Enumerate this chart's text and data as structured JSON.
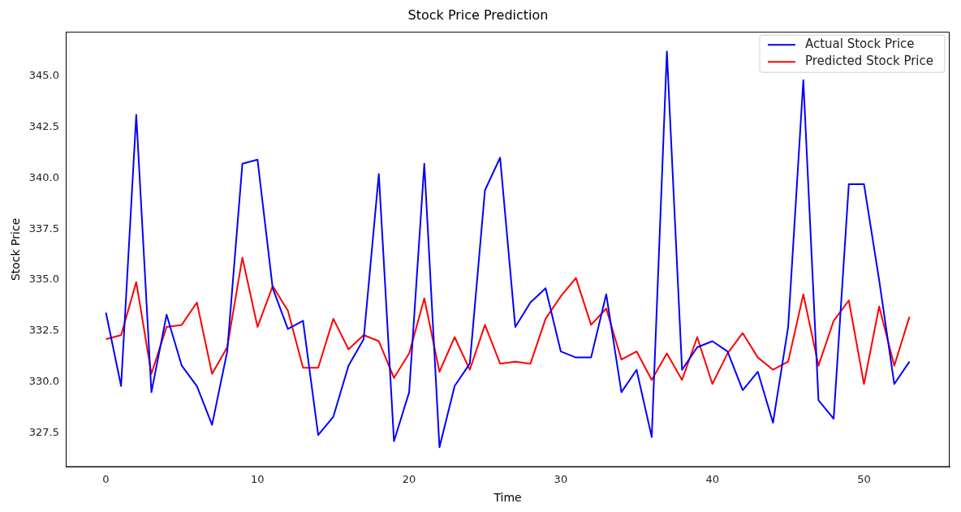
{
  "chart_data": {
    "type": "line",
    "title": "Stock Price Prediction",
    "xlabel": "Time",
    "ylabel": "Stock Price",
    "x": [
      0,
      1,
      2,
      3,
      4,
      5,
      6,
      7,
      8,
      9,
      10,
      11,
      12,
      13,
      14,
      15,
      16,
      17,
      18,
      19,
      20,
      21,
      22,
      23,
      24,
      25,
      26,
      27,
      28,
      29,
      30,
      31,
      32,
      33,
      34,
      35,
      36,
      37,
      38,
      39,
      40,
      41,
      42,
      43,
      44,
      45,
      46,
      47,
      48,
      49,
      50,
      51,
      52,
      53
    ],
    "series": [
      {
        "name": "Actual Stock Price",
        "color": "#0000ff",
        "values": [
          333.4,
          329.8,
          343.1,
          329.5,
          333.3,
          330.8,
          329.8,
          327.9,
          331.5,
          340.7,
          340.9,
          334.6,
          332.6,
          333.0,
          327.4,
          328.3,
          330.8,
          332.1,
          340.2,
          327.1,
          329.5,
          340.7,
          326.8,
          329.8,
          330.9,
          339.4,
          341.0,
          332.7,
          333.9,
          334.6,
          331.5,
          331.2,
          331.2,
          334.3,
          329.5,
          330.6,
          327.3,
          346.2,
          330.6,
          331.7,
          332.0,
          331.5,
          329.6,
          330.5,
          328.0,
          332.7,
          344.8,
          329.1,
          328.2,
          339.7,
          339.7,
          335.0,
          329.9,
          331.0
        ]
      },
      {
        "name": "Predicted Stock Price",
        "color": "#ff0000",
        "values": [
          332.1,
          332.3,
          334.9,
          330.4,
          332.7,
          332.8,
          333.9,
          330.4,
          331.7,
          336.1,
          332.7,
          334.7,
          333.5,
          330.7,
          330.7,
          333.1,
          331.6,
          332.3,
          332.0,
          330.2,
          331.4,
          334.1,
          330.5,
          332.2,
          330.6,
          332.8,
          330.9,
          331.0,
          330.9,
          333.1,
          334.2,
          335.1,
          332.8,
          333.6,
          331.1,
          331.5,
          330.1,
          331.4,
          330.1,
          332.2,
          329.9,
          331.4,
          332.4,
          331.2,
          330.6,
          331.0,
          334.3,
          330.8,
          333.0,
          334.0,
          329.9,
          333.7,
          330.8,
          333.2
        ]
      }
    ],
    "xlim": [
      -2.65,
      55.65
    ],
    "ylim": [
      325.83,
      347.17
    ],
    "xticks": [
      0,
      10,
      20,
      30,
      40,
      50
    ],
    "yticks": [
      {
        "value": 327.5,
        "label": "327.5"
      },
      {
        "value": 330,
        "label": "330.0"
      },
      {
        "value": 332.5,
        "label": "332.5"
      },
      {
        "value": 335,
        "label": "335.0"
      },
      {
        "value": 337.5,
        "label": "337.5"
      },
      {
        "value": 340,
        "label": "340.0"
      },
      {
        "value": 342.5,
        "label": "342.5"
      },
      {
        "value": 345,
        "label": "345.0"
      }
    ],
    "legend": "top right",
    "grid": false,
    "marker": "none",
    "line_style": "solid"
  }
}
